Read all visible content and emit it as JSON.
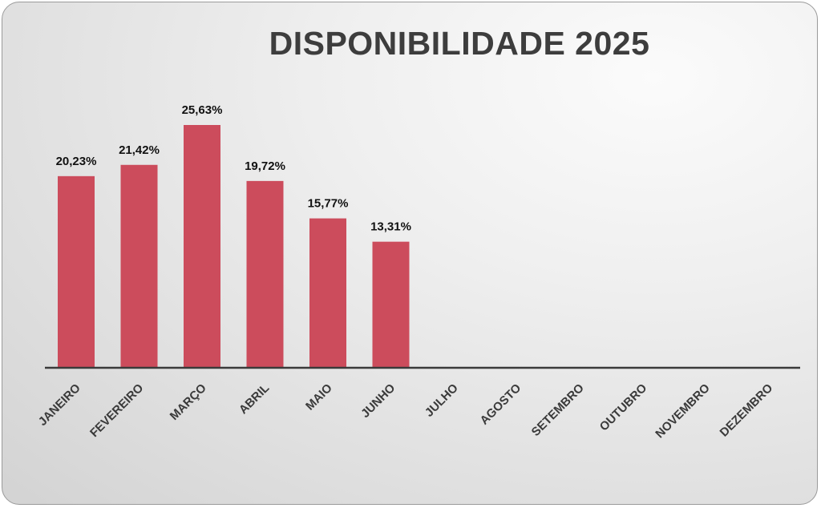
{
  "chart_data": {
    "type": "bar",
    "title": "DISPONIBILIDADE 2025",
    "categories": [
      "JANEIRO",
      "FEVEREIRO",
      "MARÇO",
      "ABRIL",
      "MAIO",
      "JUNHO",
      "JULHO",
      "AGOSTO",
      "SETEMBRO",
      "OUTUBRO",
      "NOVEMBRO",
      "DEZEMBRO"
    ],
    "values": [
      20.23,
      21.42,
      25.63,
      19.72,
      15.77,
      13.31,
      null,
      null,
      null,
      null,
      null,
      null
    ],
    "data_labels": [
      "20,23%",
      "21,42%",
      "25,63%",
      "19,72%",
      "15,77%",
      "13,31%",
      "",
      "",
      "",
      "",
      "",
      ""
    ],
    "ylim": [
      0,
      25.63
    ],
    "grid": false,
    "legend": "none",
    "colors": {
      "bar": "#cc4c5c",
      "axis": "#3a3a3a"
    }
  }
}
